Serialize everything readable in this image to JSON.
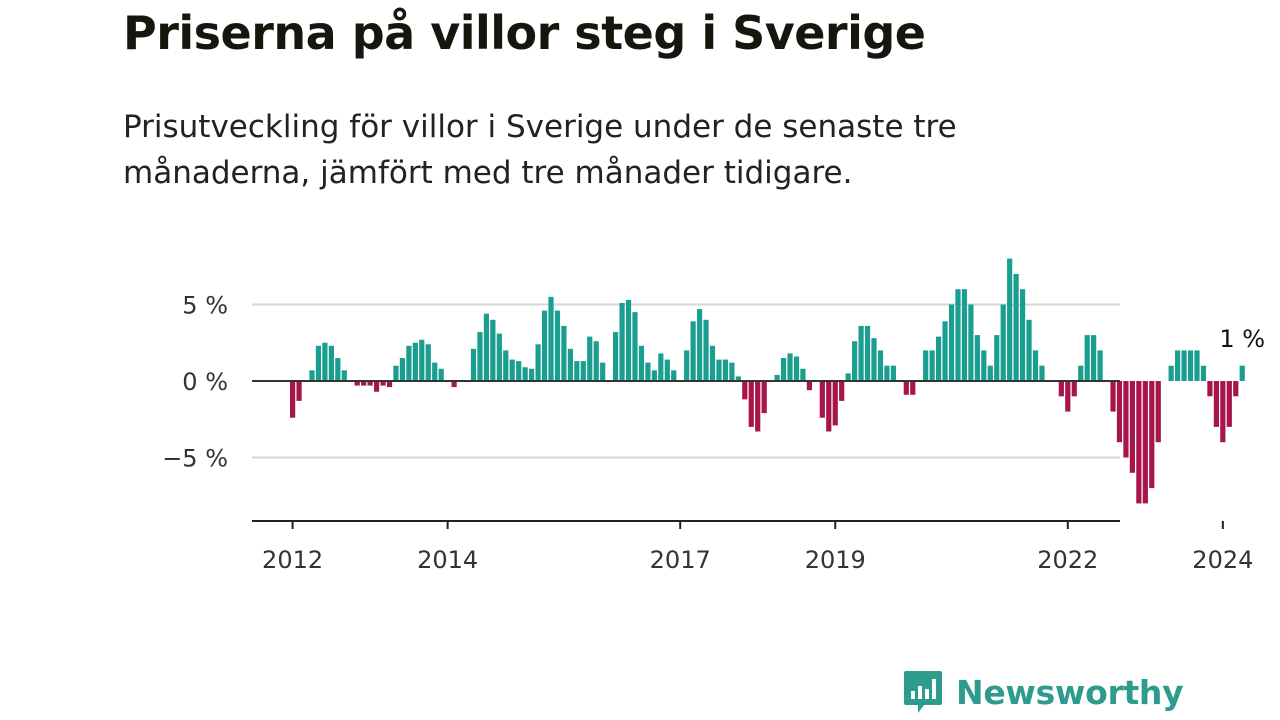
{
  "title": "Priserna på villor steg i Sverige",
  "subtitle": "Prisutveckling för villor i Sverige under de senaste tre månaderna, jämfört med tre månader tidigare.",
  "brand": {
    "name": "Newsworthy",
    "icon": "newsworthy-logo-icon",
    "color": "#2d9b8e"
  },
  "chart_data": {
    "type": "bar",
    "title": "Priserna på villor steg i Sverige",
    "subtitle": "Prisutveckling för villor i Sverige under de senaste tre månaderna, jämfört med tre månader tidigare.",
    "xlabel": "",
    "ylabel": "",
    "unit": "%",
    "ylim": [
      -9,
      10
    ],
    "yticks": [
      {
        "value": 5,
        "label": "5 %"
      },
      {
        "value": 0,
        "label": "0 %"
      },
      {
        "value": -5,
        "label": "−5 %"
      }
    ],
    "xticks": [
      {
        "value": "2012-01",
        "label": "2012"
      },
      {
        "value": "2014-01",
        "label": "2014"
      },
      {
        "value": "2017-01",
        "label": "2017"
      },
      {
        "value": "2019-01",
        "label": "2019"
      },
      {
        "value": "2022-01",
        "label": "2022"
      },
      {
        "value": "2024-01",
        "label": "2024"
      }
    ],
    "grid": true,
    "colors": {
      "positive": "#1a9e90",
      "negative": "#a8154a",
      "zero_line": "#333333",
      "grid": "#d6d6d6"
    },
    "annotation": {
      "value": "2024-04",
      "label": "1 %"
    },
    "x": [
      "2012-01",
      "2012-02",
      "2012-03",
      "2012-04",
      "2012-05",
      "2012-06",
      "2012-07",
      "2012-08",
      "2012-09",
      "2012-10",
      "2012-11",
      "2012-12",
      "2013-01",
      "2013-02",
      "2013-03",
      "2013-04",
      "2013-05",
      "2013-06",
      "2013-07",
      "2013-08",
      "2013-09",
      "2013-10",
      "2013-11",
      "2013-12",
      "2014-01",
      "2014-02",
      "2014-03",
      "2014-04",
      "2014-05",
      "2014-06",
      "2014-07",
      "2014-08",
      "2014-09",
      "2014-10",
      "2014-11",
      "2014-12",
      "2015-01",
      "2015-02",
      "2015-03",
      "2015-04",
      "2015-05",
      "2015-06",
      "2015-07",
      "2015-08",
      "2015-09",
      "2015-10",
      "2015-11",
      "2015-12",
      "2016-01",
      "2016-02",
      "2016-03",
      "2016-04",
      "2016-05",
      "2016-06",
      "2016-07",
      "2016-08",
      "2016-09",
      "2016-10",
      "2016-11",
      "2016-12",
      "2017-01",
      "2017-02",
      "2017-03",
      "2017-04",
      "2017-05",
      "2017-06",
      "2017-07",
      "2017-08",
      "2017-09",
      "2017-10",
      "2017-11",
      "2017-12",
      "2018-01",
      "2018-02",
      "2018-03",
      "2018-04",
      "2018-05",
      "2018-06",
      "2018-07",
      "2018-08",
      "2018-09",
      "2018-10",
      "2018-11",
      "2018-12",
      "2019-01",
      "2019-02",
      "2019-03",
      "2019-04",
      "2019-05",
      "2019-06",
      "2019-07",
      "2019-08",
      "2019-09",
      "2019-10",
      "2019-11",
      "2019-12",
      "2020-01",
      "2020-02",
      "2020-03",
      "2020-04",
      "2020-05",
      "2020-06",
      "2020-07",
      "2020-08",
      "2020-09",
      "2020-10",
      "2020-11",
      "2020-12",
      "2021-01",
      "2021-02",
      "2021-03",
      "2021-04",
      "2021-05",
      "2021-06",
      "2021-07",
      "2021-08",
      "2021-09",
      "2021-10",
      "2021-11",
      "2021-12",
      "2022-01",
      "2022-02",
      "2022-03",
      "2022-04",
      "2022-05",
      "2022-06",
      "2022-07",
      "2022-08",
      "2022-09",
      "2022-10",
      "2022-11",
      "2022-12",
      "2023-01",
      "2023-02",
      "2023-03",
      "2023-04",
      "2023-05",
      "2023-06",
      "2023-07",
      "2023-08",
      "2023-09",
      "2023-10",
      "2023-11",
      "2023-12",
      "2024-01",
      "2024-02",
      "2024-03",
      "2024-04"
    ],
    "series": [
      {
        "values": [
          -2.4,
          -1.3,
          0,
          0.7,
          2.3,
          2.5,
          2.3,
          1.5,
          0.7,
          0,
          -0.3,
          -0.3,
          -0.3,
          -0.7,
          -0.3,
          -0.4,
          1.0,
          1.5,
          2.3,
          2.5,
          2.7,
          2.4,
          1.2,
          0.8,
          0,
          -0.4,
          0,
          0,
          2.1,
          3.2,
          4.4,
          4.0,
          3.1,
          2.0,
          1.4,
          1.3,
          0.9,
          0.8,
          2.4,
          4.6,
          5.5,
          4.6,
          3.6,
          2.1,
          1.3,
          1.3,
          2.9,
          2.6,
          1.2,
          0,
          3.2,
          5.1,
          5.3,
          4.5,
          2.3,
          1.2,
          0.7,
          1.8,
          1.4,
          0.7,
          0,
          2.0,
          3.9,
          4.7,
          4.0,
          2.3,
          1.4,
          1.4,
          1.2,
          0.3,
          -1.2,
          -3.0,
          -3.3,
          -2.1,
          0,
          0.4,
          1.5,
          1.8,
          1.6,
          0.8,
          -0.6,
          0,
          -2.4,
          -3.3,
          -2.9,
          -1.3,
          0.5,
          2.6,
          3.6,
          3.6,
          2.8,
          2.0,
          1.0,
          1.0,
          0,
          -0.9,
          -0.9,
          0,
          2.0,
          2.0,
          2.9,
          3.9,
          5.0,
          6.0,
          6.0,
          5.0,
          3.0,
          2.0,
          1.0,
          3.0,
          5.0,
          8.0,
          7.0,
          6.0,
          4.0,
          2.0,
          1.0,
          0,
          0,
          -1.0,
          -2.0,
          -1.0,
          1.0,
          3.0,
          3.0,
          2.0,
          0,
          -2.0,
          -4.0,
          -5.0,
          -6.0,
          -8.0,
          -8.0,
          -7.0,
          -4.0,
          0,
          1.0,
          2.0,
          2.0,
          2.0,
          2.0,
          1.0,
          -1.0,
          -3.0,
          -4.0,
          -3.0,
          -1.0,
          1.0
        ]
      }
    ]
  }
}
